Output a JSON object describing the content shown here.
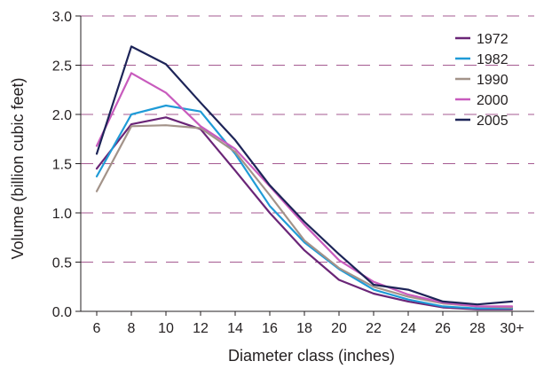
{
  "chart_data": {
    "type": "line",
    "xlabel": "Diameter class (inches)",
    "ylabel": "Volume (billion cubic feet)",
    "ylim": [
      0,
      3.0
    ],
    "yticks": [
      "0.0",
      "0.5",
      "1.0",
      "1.5",
      "2.0",
      "2.5",
      "3.0"
    ],
    "categories": [
      "6",
      "8",
      "10",
      "12",
      "14",
      "16",
      "18",
      "20",
      "22",
      "24",
      "26",
      "28",
      "30+"
    ],
    "grid": "horizontal dashed",
    "legend_position": "top-right",
    "series": [
      {
        "name": "1972",
        "color": "#6a2577",
        "values": [
          1.45,
          1.9,
          1.97,
          1.85,
          1.43,
          1.0,
          0.62,
          0.32,
          0.18,
          0.1,
          0.04,
          0.02,
          0.02
        ]
      },
      {
        "name": "1982",
        "color": "#1f9bd7",
        "values": [
          1.37,
          2.0,
          2.09,
          2.03,
          1.6,
          1.07,
          0.7,
          0.43,
          0.22,
          0.12,
          0.05,
          0.03,
          0.03
        ]
      },
      {
        "name": "1990",
        "color": "#a39389",
        "values": [
          1.22,
          1.88,
          1.89,
          1.86,
          1.62,
          1.18,
          0.72,
          0.44,
          0.25,
          0.15,
          0.08,
          0.05,
          0.04
        ]
      },
      {
        "name": "2000",
        "color": "#c85bbd",
        "values": [
          1.68,
          2.42,
          2.22,
          1.88,
          1.65,
          1.27,
          0.88,
          0.52,
          0.3,
          0.17,
          0.09,
          0.05,
          0.05
        ]
      },
      {
        "name": "2005",
        "color": "#1d2458",
        "values": [
          1.6,
          2.69,
          2.51,
          2.12,
          1.74,
          1.28,
          0.91,
          0.58,
          0.27,
          0.22,
          0.1,
          0.07,
          0.1
        ]
      }
    ],
    "colors": {
      "axis": "#231f20",
      "grid": "#a55a91"
    }
  }
}
